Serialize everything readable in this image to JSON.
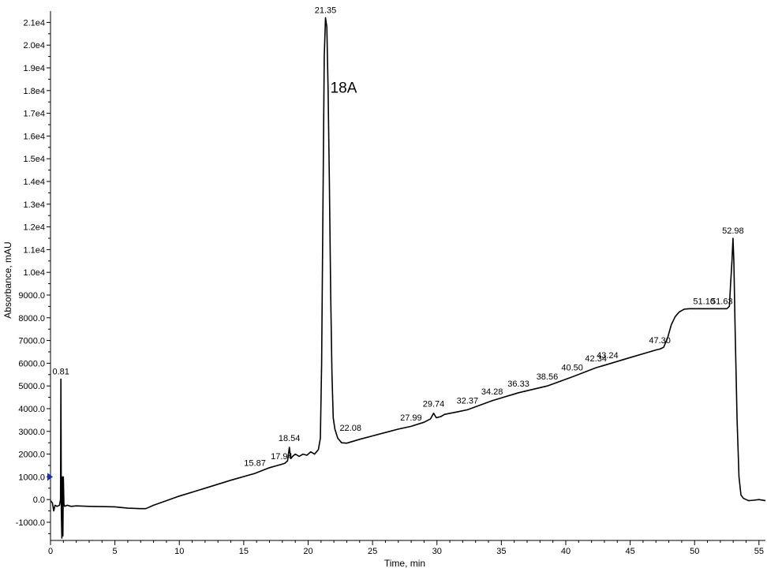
{
  "chart_data": {
    "type": "line",
    "title": "",
    "xlabel": "Time, min",
    "ylabel": "Absorbance, mAU",
    "xlim": [
      0,
      55.5
    ],
    "ylim": [
      -1800,
      21500
    ],
    "grid": false,
    "x_ticks": [
      0,
      5,
      10,
      15,
      20,
      25,
      30,
      35,
      40,
      45,
      50,
      55
    ],
    "x_tick_labels": [
      "0",
      "5",
      "10",
      "15",
      "20",
      "25",
      "30",
      "35",
      "40",
      "45",
      "50",
      "55"
    ],
    "y_ticks": [
      -1000,
      0,
      1000,
      2000,
      3000,
      4000,
      5000,
      6000,
      7000,
      8000,
      9000,
      10000,
      11000,
      12000,
      13000,
      14000,
      15000,
      16000,
      17000,
      18000,
      19000,
      20000,
      21000
    ],
    "y_tick_labels": [
      "-1000.0",
      "0.0",
      "1000.0",
      "2000.0",
      "3000.0",
      "4000.0",
      "5000.0",
      "6000.0",
      "7000.0",
      "8000.0",
      "9000.0",
      "1.0e4",
      "1.1e4",
      "1.2e4",
      "1.3e4",
      "1.4e4",
      "1.5e4",
      "1.6e4",
      "1.7e4",
      "1.8e4",
      "1.9e4",
      "2.0e4",
      "2.1e4"
    ],
    "annotation": {
      "text": "18A",
      "x": 21.6,
      "y": 17900
    },
    "peaks": [
      {
        "label": "0.81",
        "x": 0.81,
        "y": 5300
      },
      {
        "label": "15.87",
        "x": 15.87,
        "y": 1200
      },
      {
        "label": "17.94",
        "x": 17.94,
        "y": 1500
      },
      {
        "label": "18.54",
        "x": 18.54,
        "y": 2300
      },
      {
        "label": "21.35",
        "x": 21.35,
        "y": 21200
      },
      {
        "label": "22.08",
        "x": 22.08,
        "y": 3100
      },
      {
        "label": "27.99",
        "x": 27.99,
        "y": 3200
      },
      {
        "label": "29.74",
        "x": 29.74,
        "y": 3800
      },
      {
        "label": "32.37",
        "x": 32.37,
        "y": 3950
      },
      {
        "label": "34.28",
        "x": 34.28,
        "y": 4350
      },
      {
        "label": "36.33",
        "x": 36.33,
        "y": 4700
      },
      {
        "label": "38.56",
        "x": 38.56,
        "y": 5000
      },
      {
        "label": "40.50",
        "x": 40.5,
        "y": 5400
      },
      {
        "label": "42.34",
        "x": 42.34,
        "y": 5800
      },
      {
        "label": "43.24",
        "x": 43.24,
        "y": 5950
      },
      {
        "label": "47.30",
        "x": 47.3,
        "y": 6600
      },
      {
        "label": "51.10",
        "x": 51.1,
        "y": 8400
      },
      {
        "label": "51.63",
        "x": 51.63,
        "y": 8400
      },
      {
        "label": "52.98",
        "x": 52.98,
        "y": 11500
      }
    ],
    "series": [
      {
        "color": "#000000",
        "points": [
          [
            0.0,
            -50
          ],
          [
            0.15,
            -150
          ],
          [
            0.25,
            -500
          ],
          [
            0.35,
            -250
          ],
          [
            0.5,
            -300
          ],
          [
            0.7,
            -250
          ],
          [
            0.78,
            0
          ],
          [
            0.81,
            5300
          ],
          [
            0.84,
            -500
          ],
          [
            0.88,
            -1700
          ],
          [
            0.92,
            1000
          ],
          [
            0.96,
            -1600
          ],
          [
            1.0,
            1000
          ],
          [
            1.04,
            -200
          ],
          [
            1.1,
            -300
          ],
          [
            1.3,
            -250
          ],
          [
            1.6,
            -300
          ],
          [
            2.0,
            -280
          ],
          [
            3.0,
            -300
          ],
          [
            4.0,
            -310
          ],
          [
            5.0,
            -320
          ],
          [
            6.0,
            -380
          ],
          [
            7.0,
            -400
          ],
          [
            7.4,
            -400
          ],
          [
            8.0,
            -250
          ],
          [
            10.0,
            150
          ],
          [
            12.0,
            500
          ],
          [
            14.0,
            850
          ],
          [
            15.87,
            1150
          ],
          [
            17.0,
            1400
          ],
          [
            17.94,
            1550
          ],
          [
            18.2,
            1600
          ],
          [
            18.4,
            1700
          ],
          [
            18.54,
            2300
          ],
          [
            18.65,
            1800
          ],
          [
            18.8,
            1900
          ],
          [
            19.0,
            2000
          ],
          [
            19.3,
            1900
          ],
          [
            19.6,
            2000
          ],
          [
            19.9,
            1950
          ],
          [
            20.2,
            2100
          ],
          [
            20.5,
            2000
          ],
          [
            20.8,
            2200
          ],
          [
            20.95,
            2700
          ],
          [
            21.05,
            6000
          ],
          [
            21.15,
            13000
          ],
          [
            21.25,
            19500
          ],
          [
            21.35,
            21200
          ],
          [
            21.45,
            20800
          ],
          [
            21.55,
            18000
          ],
          [
            21.65,
            14000
          ],
          [
            21.75,
            9000
          ],
          [
            21.85,
            5500
          ],
          [
            21.95,
            3600
          ],
          [
            22.08,
            3100
          ],
          [
            22.3,
            2700
          ],
          [
            22.6,
            2500
          ],
          [
            23.0,
            2480
          ],
          [
            24.0,
            2650
          ],
          [
            25.0,
            2800
          ],
          [
            26.0,
            2950
          ],
          [
            27.0,
            3100
          ],
          [
            27.99,
            3220
          ],
          [
            29.0,
            3400
          ],
          [
            29.5,
            3550
          ],
          [
            29.74,
            3800
          ],
          [
            29.95,
            3600
          ],
          [
            30.3,
            3650
          ],
          [
            30.6,
            3750
          ],
          [
            31.5,
            3850
          ],
          [
            32.37,
            3950
          ],
          [
            34.28,
            4350
          ],
          [
            36.33,
            4700
          ],
          [
            38.56,
            5000
          ],
          [
            40.5,
            5400
          ],
          [
            42.34,
            5800
          ],
          [
            43.24,
            5950
          ],
          [
            45.0,
            6250
          ],
          [
            46.5,
            6500
          ],
          [
            47.1,
            6600
          ],
          [
            47.3,
            6620
          ],
          [
            47.6,
            6700
          ],
          [
            47.9,
            7100
          ],
          [
            48.2,
            7700
          ],
          [
            48.5,
            8050
          ],
          [
            48.8,
            8250
          ],
          [
            49.2,
            8380
          ],
          [
            49.6,
            8400
          ],
          [
            50.5,
            8400
          ],
          [
            51.1,
            8400
          ],
          [
            51.63,
            8400
          ],
          [
            52.5,
            8400
          ],
          [
            52.7,
            8500
          ],
          [
            52.8,
            9500
          ],
          [
            52.9,
            10500
          ],
          [
            52.98,
            11500
          ],
          [
            53.05,
            10500
          ],
          [
            53.15,
            7500
          ],
          [
            53.3,
            3500
          ],
          [
            53.45,
            1000
          ],
          [
            53.6,
            200
          ],
          [
            53.8,
            50
          ],
          [
            54.2,
            -50
          ],
          [
            54.6,
            -30
          ],
          [
            55.0,
            0
          ],
          [
            55.5,
            -50
          ]
        ]
      }
    ],
    "marker": {
      "color": "#1a2fa8",
      "y": 1000
    }
  }
}
